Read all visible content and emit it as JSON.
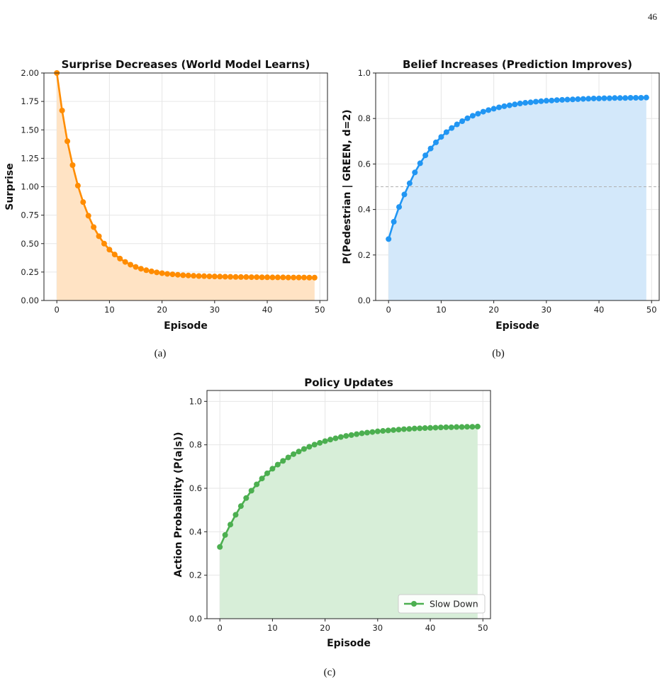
{
  "page_number": "46",
  "captions": [
    "(a)",
    "(b)",
    "(c)"
  ],
  "chart_data": [
    {
      "type": "line",
      "title": "Surprise Decreases (World Model Learns)",
      "xlabel": "Episode",
      "ylabel": "Surprise",
      "xlim": [
        -2.45,
        51.45
      ],
      "ylim": [
        0,
        2
      ],
      "xticks": [
        "0",
        "10",
        "20",
        "30",
        "40",
        "50"
      ],
      "yticks": [
        "0.00",
        "0.25",
        "0.50",
        "0.75",
        "1.00",
        "1.25",
        "1.50",
        "1.75",
        "2.00"
      ],
      "grid": true,
      "fill": true,
      "color": "#ff8c00",
      "fill_color": "#ffe3c4",
      "series": [
        {
          "x": [
            0,
            1,
            2,
            3,
            4,
            5,
            6,
            7,
            8,
            9,
            10,
            11,
            12,
            13,
            14,
            15,
            16,
            17,
            18,
            19,
            20,
            21,
            22,
            23,
            24,
            25,
            26,
            27,
            28,
            29,
            30,
            31,
            32,
            33,
            34,
            35,
            36,
            37,
            38,
            39,
            40,
            41,
            42,
            43,
            44,
            45,
            46,
            47,
            48,
            49
          ],
          "values": [
            2.0,
            1.67,
            1.4,
            1.19,
            1.01,
            0.865,
            0.745,
            0.645,
            0.565,
            0.5,
            0.447,
            0.404,
            0.368,
            0.339,
            0.315,
            0.295,
            0.279,
            0.266,
            0.256,
            0.247,
            0.24,
            0.234,
            0.23,
            0.226,
            0.222,
            0.22,
            0.217,
            0.215,
            0.214,
            0.212,
            0.211,
            0.21,
            0.209,
            0.208,
            0.207,
            0.206,
            0.206,
            0.205,
            0.205,
            0.204,
            0.204,
            0.203,
            0.203,
            0.203,
            0.202,
            0.202,
            0.202,
            0.202,
            0.201,
            0.201
          ]
        }
      ]
    },
    {
      "type": "line",
      "title": "Belief Increases (Prediction Improves)",
      "xlabel": "Episode",
      "ylabel": "P(Pedestrian | GREEN, d=2)",
      "xlim": [
        -2.45,
        51.45
      ],
      "ylim": [
        0,
        1
      ],
      "xticks": [
        "0",
        "10",
        "20",
        "30",
        "40",
        "50"
      ],
      "yticks": [
        "0.0",
        "0.2",
        "0.4",
        "0.6",
        "0.8",
        "1.0"
      ],
      "grid": true,
      "fill": true,
      "reference_line": 0.5,
      "color": "#2196f3",
      "fill_color": "#d3e8fa",
      "series": [
        {
          "x": [
            0,
            1,
            2,
            3,
            4,
            5,
            6,
            7,
            8,
            9,
            10,
            11,
            12,
            13,
            14,
            15,
            16,
            17,
            18,
            19,
            20,
            21,
            22,
            23,
            24,
            25,
            26,
            27,
            28,
            29,
            30,
            31,
            32,
            33,
            34,
            35,
            36,
            37,
            38,
            39,
            40,
            41,
            42,
            43,
            44,
            45,
            46,
            47,
            48,
            49
          ],
          "values": [
            0.27,
            0.346,
            0.411,
            0.466,
            0.515,
            0.563,
            0.603,
            0.638,
            0.668,
            0.695,
            0.719,
            0.74,
            0.758,
            0.774,
            0.788,
            0.801,
            0.812,
            0.821,
            0.83,
            0.837,
            0.843,
            0.849,
            0.854,
            0.858,
            0.862,
            0.866,
            0.869,
            0.871,
            0.874,
            0.876,
            0.878,
            0.879,
            0.881,
            0.882,
            0.883,
            0.884,
            0.885,
            0.886,
            0.887,
            0.888,
            0.888,
            0.889,
            0.889,
            0.89,
            0.89,
            0.89,
            0.891,
            0.891,
            0.891,
            0.892
          ]
        }
      ]
    },
    {
      "type": "line",
      "title": "Policy Updates",
      "xlabel": "Episode",
      "ylabel": "Action Probability (P(a|s))",
      "xlim": [
        -2.45,
        51.45
      ],
      "ylim": [
        0,
        1.05
      ],
      "xticks": [
        "0",
        "10",
        "20",
        "30",
        "40",
        "50"
      ],
      "yticks": [
        "0.0",
        "0.2",
        "0.4",
        "0.6",
        "0.8",
        "1.0"
      ],
      "grid": true,
      "fill": true,
      "legend": "bottom-right",
      "color": "#4caf50",
      "fill_color": "#d7eed8",
      "series": [
        {
          "name": "Slow Down",
          "x": [
            0,
            1,
            2,
            3,
            4,
            5,
            6,
            7,
            8,
            9,
            10,
            11,
            12,
            13,
            14,
            15,
            16,
            17,
            18,
            19,
            20,
            21,
            22,
            23,
            24,
            25,
            26,
            27,
            28,
            29,
            30,
            31,
            32,
            33,
            34,
            35,
            36,
            37,
            38,
            39,
            40,
            41,
            42,
            43,
            44,
            45,
            46,
            47,
            48,
            49
          ],
          "values": [
            0.33,
            0.385,
            0.433,
            0.478,
            0.518,
            0.555,
            0.589,
            0.618,
            0.645,
            0.669,
            0.69,
            0.709,
            0.726,
            0.742,
            0.757,
            0.769,
            0.781,
            0.791,
            0.801,
            0.809,
            0.817,
            0.824,
            0.83,
            0.836,
            0.841,
            0.845,
            0.849,
            0.853,
            0.856,
            0.859,
            0.862,
            0.864,
            0.866,
            0.868,
            0.87,
            0.872,
            0.873,
            0.875,
            0.876,
            0.877,
            0.878,
            0.879,
            0.88,
            0.881,
            0.881,
            0.882,
            0.882,
            0.883,
            0.883,
            0.884
          ]
        }
      ]
    }
  ]
}
